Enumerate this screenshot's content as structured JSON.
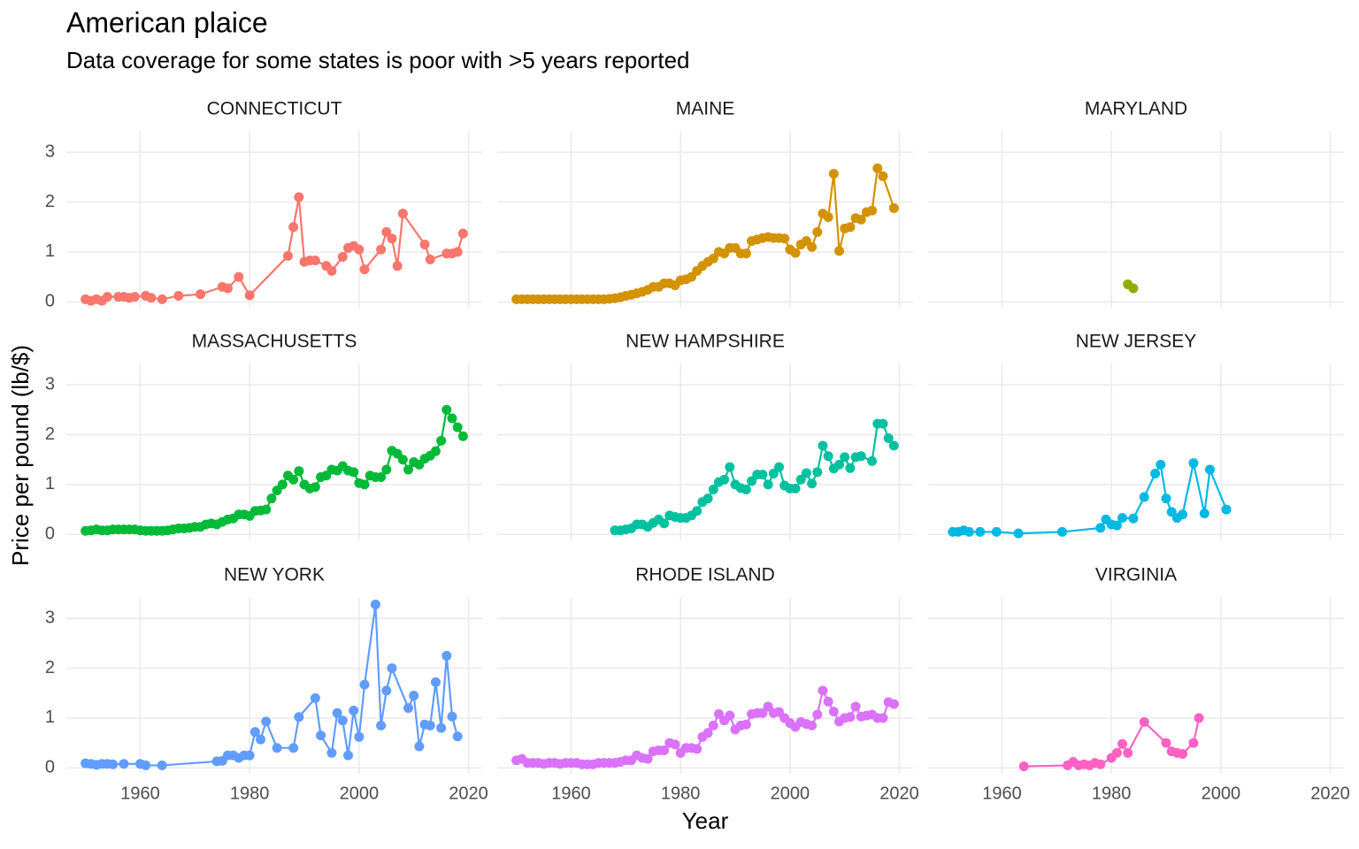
{
  "chart_data": {
    "type": "line",
    "title": "American plaice",
    "subtitle": "Data coverage for some states is poor with >5 years reported",
    "x_label": "Year",
    "y_label": "Price per pound (lb/$)",
    "xlim": [
      1946.5,
      2022.5
    ],
    "ylim": [
      -0.12,
      3.43
    ],
    "xticks": [
      1960,
      1980,
      2000,
      2020
    ],
    "yticks": [
      0,
      1,
      2,
      3
    ],
    "grid": true,
    "series": [
      {
        "name": "CONNECTICUT",
        "color": "#F8766D",
        "x": [
          1950,
          1951,
          1952,
          1953,
          1954,
          1956,
          1957,
          1958,
          1959,
          1961,
          1962,
          1964,
          1967,
          1971,
          1975,
          1976,
          1978,
          1980,
          1987,
          1988,
          1989,
          1990,
          1991,
          1992,
          1994,
          1995,
          1997,
          1998,
          1999,
          2000,
          2001,
          2004,
          2005,
          2006,
          2007,
          2008,
          2012,
          2013,
          2016,
          2017,
          2018,
          2019
        ],
        "values": [
          0.05,
          0.02,
          0.05,
          0.02,
          0.1,
          0.1,
          0.1,
          0.08,
          0.1,
          0.12,
          0.08,
          0.05,
          0.12,
          0.15,
          0.3,
          0.27,
          0.5,
          0.13,
          0.92,
          1.5,
          2.1,
          0.8,
          0.83,
          0.83,
          0.72,
          0.62,
          0.9,
          1.08,
          1.12,
          1.05,
          0.65,
          1.05,
          1.4,
          1.27,
          0.72,
          1.77,
          1.15,
          0.85,
          0.97,
          0.97,
          1.0,
          1.37
        ]
      },
      {
        "name": "MAINE",
        "color": "#D39200",
        "x": [
          1950,
          1951,
          1952,
          1953,
          1954,
          1955,
          1956,
          1957,
          1958,
          1959,
          1960,
          1961,
          1962,
          1963,
          1964,
          1965,
          1966,
          1967,
          1968,
          1969,
          1970,
          1971,
          1972,
          1973,
          1974,
          1975,
          1976,
          1977,
          1978,
          1979,
          1980,
          1981,
          1982,
          1983,
          1984,
          1985,
          1986,
          1987,
          1988,
          1989,
          1990,
          1991,
          1992,
          1993,
          1994,
          1995,
          1996,
          1997,
          1998,
          1999,
          2000,
          2001,
          2002,
          2003,
          2004,
          2005,
          2006,
          2007,
          2008,
          2009,
          2010,
          2011,
          2012,
          2013,
          2014,
          2015,
          2016,
          2017,
          2019
        ],
        "values": [
          0.05,
          0.05,
          0.05,
          0.05,
          0.05,
          0.05,
          0.05,
          0.05,
          0.05,
          0.05,
          0.05,
          0.05,
          0.05,
          0.05,
          0.05,
          0.05,
          0.05,
          0.06,
          0.07,
          0.09,
          0.12,
          0.14,
          0.17,
          0.2,
          0.24,
          0.3,
          0.3,
          0.37,
          0.37,
          0.33,
          0.43,
          0.45,
          0.5,
          0.62,
          0.72,
          0.8,
          0.87,
          1.0,
          0.97,
          1.08,
          1.08,
          0.97,
          0.97,
          1.22,
          1.25,
          1.28,
          1.3,
          1.28,
          1.28,
          1.27,
          1.05,
          0.98,
          1.15,
          1.22,
          1.1,
          1.4,
          1.77,
          1.7,
          2.57,
          1.02,
          1.47,
          1.5,
          1.68,
          1.65,
          1.8,
          1.83,
          2.68,
          2.52,
          1.88
        ]
      },
      {
        "name": "MARYLAND",
        "color": "#93AA00",
        "x": [
          1983,
          1984
        ],
        "values": [
          0.35,
          0.27
        ]
      },
      {
        "name": "MASSACHUSETTS",
        "color": "#00BA38",
        "x": [
          1950,
          1951,
          1952,
          1953,
          1954,
          1955,
          1956,
          1957,
          1958,
          1959,
          1960,
          1961,
          1962,
          1963,
          1964,
          1965,
          1966,
          1967,
          1968,
          1969,
          1970,
          1971,
          1972,
          1973,
          1974,
          1975,
          1976,
          1977,
          1978,
          1979,
          1980,
          1981,
          1982,
          1983,
          1984,
          1985,
          1986,
          1987,
          1988,
          1989,
          1990,
          1991,
          1992,
          1993,
          1994,
          1995,
          1996,
          1997,
          1998,
          1999,
          2000,
          2001,
          2002,
          2003,
          2004,
          2005,
          2006,
          2007,
          2008,
          2009,
          2010,
          2011,
          2012,
          2013,
          2014,
          2015,
          2016,
          2017,
          2018,
          2019
        ],
        "values": [
          0.07,
          0.08,
          0.1,
          0.08,
          0.08,
          0.1,
          0.1,
          0.1,
          0.1,
          0.1,
          0.08,
          0.07,
          0.07,
          0.07,
          0.07,
          0.08,
          0.1,
          0.12,
          0.12,
          0.13,
          0.15,
          0.15,
          0.2,
          0.22,
          0.2,
          0.25,
          0.3,
          0.32,
          0.4,
          0.4,
          0.37,
          0.47,
          0.48,
          0.5,
          0.72,
          0.88,
          1.0,
          1.18,
          1.1,
          1.27,
          1.0,
          0.92,
          0.95,
          1.15,
          1.18,
          1.3,
          1.28,
          1.37,
          1.28,
          1.25,
          1.03,
          1.0,
          1.18,
          1.15,
          1.15,
          1.3,
          1.68,
          1.62,
          1.5,
          1.3,
          1.45,
          1.4,
          1.52,
          1.58,
          1.67,
          1.88,
          2.5,
          2.33,
          2.15,
          1.97
        ]
      },
      {
        "name": "NEW HAMPSHIRE",
        "color": "#00C19F",
        "x": [
          1968,
          1969,
          1970,
          1971,
          1972,
          1973,
          1974,
          1975,
          1976,
          1977,
          1978,
          1979,
          1980,
          1981,
          1982,
          1983,
          1984,
          1985,
          1986,
          1987,
          1988,
          1989,
          1990,
          1991,
          1992,
          1993,
          1994,
          1995,
          1996,
          1997,
          1998,
          1999,
          2000,
          2001,
          2002,
          2003,
          2004,
          2005,
          2006,
          2007,
          2008,
          2009,
          2010,
          2011,
          2012,
          2013,
          2015,
          2016,
          2017,
          2018,
          2019
        ],
        "values": [
          0.08,
          0.08,
          0.1,
          0.12,
          0.2,
          0.2,
          0.15,
          0.23,
          0.3,
          0.22,
          0.38,
          0.35,
          0.33,
          0.33,
          0.38,
          0.47,
          0.65,
          0.72,
          0.9,
          1.05,
          1.1,
          1.35,
          1.0,
          0.93,
          0.9,
          1.07,
          1.2,
          1.2,
          1.0,
          1.22,
          1.35,
          0.98,
          0.92,
          0.92,
          1.1,
          1.23,
          1.02,
          1.25,
          1.78,
          1.57,
          1.32,
          1.4,
          1.55,
          1.33,
          1.55,
          1.57,
          1.47,
          2.22,
          2.22,
          1.93,
          1.78
        ]
      },
      {
        "name": "NEW JERSEY",
        "color": "#00B9E3",
        "x": [
          1951,
          1952,
          1953,
          1954,
          1956,
          1959,
          1963,
          1971,
          1978,
          1979,
          1980,
          1981,
          1982,
          1984,
          1986,
          1988,
          1989,
          1990,
          1991,
          1992,
          1993,
          1995,
          1997,
          1998,
          2001
        ],
        "values": [
          0.05,
          0.05,
          0.08,
          0.05,
          0.05,
          0.05,
          0.02,
          0.05,
          0.13,
          0.3,
          0.2,
          0.18,
          0.33,
          0.32,
          0.75,
          1.22,
          1.4,
          0.72,
          0.45,
          0.33,
          0.4,
          1.43,
          0.42,
          1.3,
          0.5
        ]
      },
      {
        "name": "NEW YORK",
        "color": "#619CFF",
        "x": [
          1950,
          1951,
          1952,
          1953,
          1954,
          1955,
          1957,
          1960,
          1961,
          1964,
          1974,
          1975,
          1976,
          1977,
          1978,
          1979,
          1980,
          1981,
          1982,
          1983,
          1985,
          1988,
          1989,
          1992,
          1993,
          1995,
          1996,
          1997,
          1998,
          1999,
          2000,
          2001,
          2003,
          2004,
          2005,
          2006,
          2009,
          2010,
          2011,
          2012,
          2013,
          2014,
          2015,
          2016,
          2017,
          2018
        ],
        "values": [
          0.09,
          0.08,
          0.06,
          0.08,
          0.08,
          0.07,
          0.08,
          0.08,
          0.05,
          0.05,
          0.13,
          0.14,
          0.25,
          0.25,
          0.2,
          0.25,
          0.25,
          0.72,
          0.57,
          0.93,
          0.4,
          0.4,
          1.02,
          1.4,
          0.65,
          0.3,
          1.1,
          0.95,
          0.25,
          1.15,
          0.62,
          1.67,
          3.28,
          0.85,
          1.55,
          2.0,
          1.2,
          1.45,
          0.43,
          0.87,
          0.85,
          1.72,
          0.8,
          2.25,
          1.03,
          0.63
        ]
      },
      {
        "name": "RHODE ISLAND",
        "color": "#DB72FB",
        "x": [
          1950,
          1951,
          1952,
          1953,
          1954,
          1955,
          1956,
          1957,
          1958,
          1959,
          1960,
          1961,
          1962,
          1963,
          1964,
          1965,
          1966,
          1967,
          1968,
          1969,
          1970,
          1971,
          1972,
          1973,
          1974,
          1975,
          1976,
          1977,
          1978,
          1979,
          1980,
          1981,
          1982,
          1983,
          1984,
          1985,
          1986,
          1987,
          1988,
          1989,
          1990,
          1991,
          1992,
          1993,
          1994,
          1995,
          1996,
          1997,
          1998,
          1999,
          2000,
          2001,
          2002,
          2003,
          2004,
          2005,
          2006,
          2007,
          2008,
          2009,
          2010,
          2011,
          2012,
          2013,
          2014,
          2015,
          2016,
          2017,
          2018,
          2019
        ],
        "values": [
          0.15,
          0.18,
          0.1,
          0.1,
          0.1,
          0.08,
          0.1,
          0.1,
          0.08,
          0.1,
          0.1,
          0.1,
          0.07,
          0.07,
          0.07,
          0.1,
          0.1,
          0.1,
          0.1,
          0.12,
          0.15,
          0.15,
          0.25,
          0.2,
          0.18,
          0.33,
          0.35,
          0.35,
          0.5,
          0.47,
          0.3,
          0.4,
          0.4,
          0.38,
          0.62,
          0.7,
          0.85,
          1.08,
          0.95,
          1.05,
          0.77,
          0.85,
          0.87,
          1.08,
          1.1,
          1.1,
          1.23,
          1.1,
          1.12,
          1.0,
          0.9,
          0.82,
          0.92,
          0.88,
          0.85,
          1.07,
          1.55,
          1.33,
          1.13,
          0.93,
          1.0,
          1.02,
          1.23,
          1.03,
          1.05,
          1.07,
          1.0,
          1.0,
          1.32,
          1.28
        ]
      },
      {
        "name": "VIRGINIA",
        "color": "#FF61C3",
        "x": [
          1964,
          1972,
          1973,
          1974,
          1975,
          1976,
          1977,
          1978,
          1980,
          1981,
          1982,
          1983,
          1986,
          1990,
          1991,
          1992,
          1993,
          1995,
          1996
        ],
        "values": [
          0.03,
          0.05,
          0.12,
          0.05,
          0.07,
          0.05,
          0.1,
          0.07,
          0.2,
          0.3,
          0.48,
          0.3,
          0.92,
          0.5,
          0.33,
          0.3,
          0.28,
          0.5,
          1.0
        ]
      }
    ]
  }
}
